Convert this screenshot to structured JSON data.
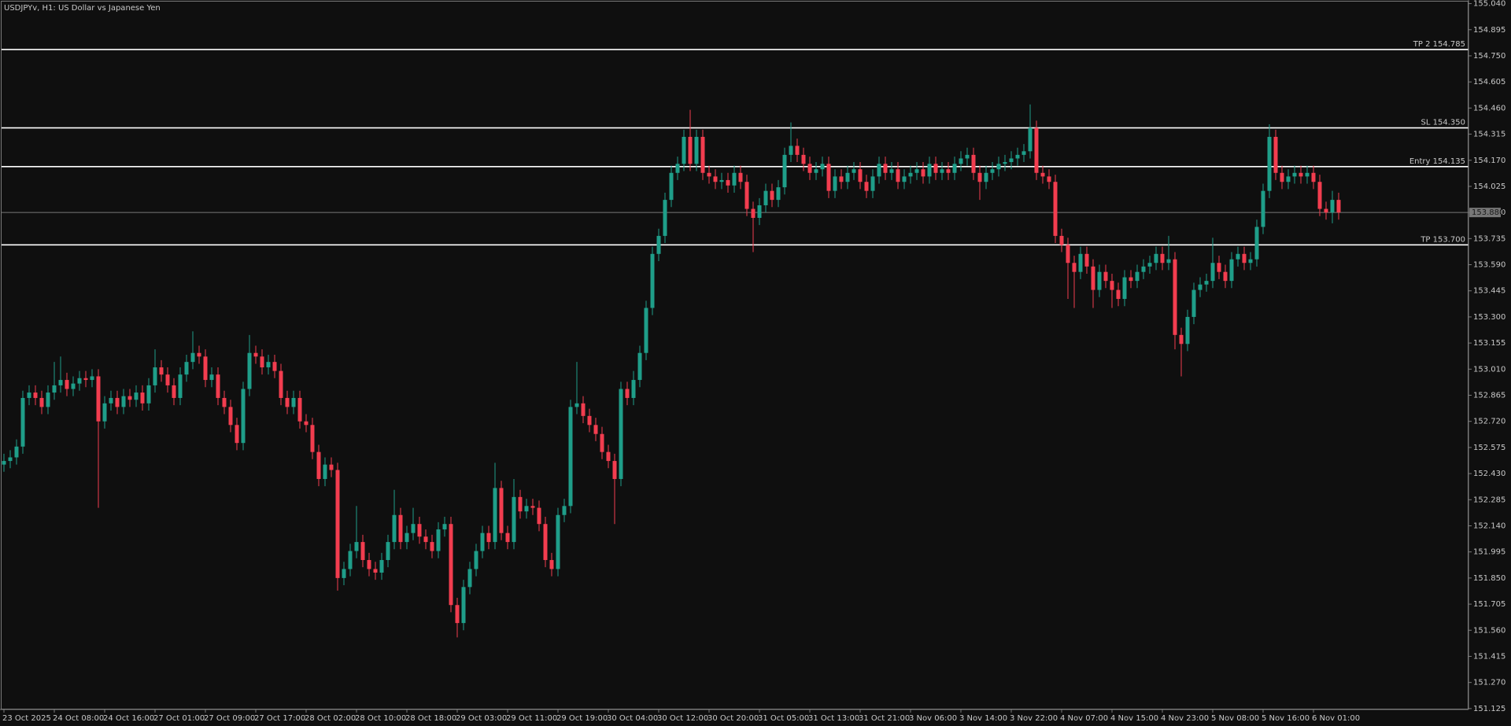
{
  "chart_data": {
    "type": "candlestick",
    "title": "USDJPYv, H1:  US Dollar vs Japanese Yen",
    "up_color": "#1f9e89",
    "down_color": "#f23d4f",
    "ylim": [
      151.12,
      155.06
    ],
    "yticks": [
      {
        "value": 151.125,
        "label": "151.125"
      },
      {
        "value": 151.27,
        "label": "151.270"
      },
      {
        "value": 151.415,
        "label": "151.415"
      },
      {
        "value": 151.56,
        "label": "151.560"
      },
      {
        "value": 151.705,
        "label": "151.705"
      },
      {
        "value": 151.85,
        "label": "151.850"
      },
      {
        "value": 151.995,
        "label": "151.995"
      },
      {
        "value": 152.14,
        "label": "152.140"
      },
      {
        "value": 152.285,
        "label": "152.285"
      },
      {
        "value": 152.43,
        "label": "152.430"
      },
      {
        "value": 152.575,
        "label": "152.575"
      },
      {
        "value": 152.72,
        "label": "152.720"
      },
      {
        "value": 152.865,
        "label": "152.865"
      },
      {
        "value": 153.01,
        "label": "153.010"
      },
      {
        "value": 153.155,
        "label": "153.155"
      },
      {
        "value": 153.3,
        "label": "153.300"
      },
      {
        "value": 153.445,
        "label": "153.445"
      },
      {
        "value": 153.59,
        "label": "153.590"
      },
      {
        "value": 153.735,
        "label": "153.735"
      },
      {
        "value": 153.88,
        "label": "153.880"
      },
      {
        "value": 154.025,
        "label": "154.025"
      },
      {
        "value": 154.17,
        "label": "154.170"
      },
      {
        "value": 154.315,
        "label": "154.315"
      },
      {
        "value": 154.46,
        "label": "154.460"
      },
      {
        "value": 154.605,
        "label": "154.605"
      },
      {
        "value": 154.75,
        "label": "154.750"
      },
      {
        "value": 154.895,
        "label": "154.895"
      },
      {
        "value": 155.04,
        "label": "155.040"
      }
    ],
    "levels": [
      {
        "value": 154.785,
        "label": "TP 2 154.785"
      },
      {
        "value": 154.35,
        "label": "SL 154.350"
      },
      {
        "value": 154.135,
        "label": "Entry 154.135"
      },
      {
        "value": 153.7,
        "label": "TP 153.700"
      }
    ],
    "bid": {
      "value": 153.88,
      "label": "153.880"
    },
    "categories": [
      "23 Oct 2025",
      null,
      null,
      null,
      null,
      null,
      null,
      null,
      "24 Oct 08:00",
      null,
      null,
      null,
      null,
      null,
      null,
      null,
      "24 Oct 16:00",
      null,
      null,
      null,
      null,
      null,
      null,
      null,
      "27 Oct 01:00",
      null,
      null,
      null,
      null,
      null,
      null,
      null,
      "27 Oct 09:00",
      null,
      null,
      null,
      null,
      null,
      null,
      null,
      "27 Oct 17:00",
      null,
      null,
      null,
      null,
      null,
      null,
      null,
      "28 Oct 02:00",
      null,
      null,
      null,
      null,
      null,
      null,
      null,
      "28 Oct 10:00",
      null,
      null,
      null,
      null,
      null,
      null,
      null,
      "28 Oct 18:00",
      null,
      null,
      null,
      null,
      null,
      null,
      null,
      "29 Oct 03:00",
      null,
      null,
      null,
      null,
      null,
      null,
      null,
      "29 Oct 11:00",
      null,
      null,
      null,
      null,
      null,
      null,
      null,
      "29 Oct 19:00",
      null,
      null,
      null,
      null,
      null,
      null,
      null,
      "30 Oct 04:00",
      null,
      null,
      null,
      null,
      null,
      null,
      null,
      "30 Oct 12:00",
      null,
      null,
      null,
      null,
      null,
      null,
      null,
      "30 Oct 20:00",
      null,
      null,
      null,
      null,
      null,
      null,
      null,
      "31 Oct 05:00",
      null,
      null,
      null,
      null,
      null,
      null,
      null,
      "31 Oct 13:00",
      null,
      null,
      null,
      null,
      null,
      null,
      null,
      "31 Oct 21:00",
      null,
      null,
      null,
      null,
      null,
      null,
      null,
      "3 Nov 06:00",
      null,
      null,
      null,
      null,
      null,
      null,
      null,
      "3 Nov 14:00",
      null,
      null,
      null,
      null,
      null,
      null,
      null,
      "3 Nov 22:00",
      null,
      null,
      null,
      null,
      null,
      null,
      null,
      "4 Nov 07:00",
      null,
      null,
      null,
      null,
      null,
      null,
      null,
      "4 Nov 15:00",
      null,
      null,
      null,
      null,
      null,
      null,
      null,
      "4 Nov 23:00",
      null,
      null,
      null,
      null,
      null,
      null,
      null,
      "5 Nov 08:00",
      null,
      null,
      null,
      null,
      null,
      null,
      null,
      "5 Nov 16:00",
      null,
      null,
      null,
      null,
      null,
      null,
      null,
      "6 Nov 01:00",
      null,
      null,
      null,
      null
    ],
    "open": [
      152.48,
      152.5,
      152.52,
      152.58,
      152.85,
      152.88,
      152.85,
      152.8,
      152.88,
      152.92,
      152.95,
      152.9,
      152.93,
      152.96,
      152.95,
      152.97,
      152.72,
      152.82,
      152.85,
      152.8,
      152.86,
      152.84,
      152.88,
      152.82,
      152.92,
      153.02,
      152.98,
      152.92,
      152.85,
      152.98,
      153.05,
      153.1,
      153.08,
      152.95,
      152.98,
      152.85,
      152.8,
      152.7,
      152.6,
      152.9,
      153.1,
      153.08,
      153.02,
      153.05,
      153.0,
      152.85,
      152.8,
      152.85,
      152.72,
      152.7,
      152.55,
      152.4,
      152.48,
      152.45,
      151.85,
      151.9,
      152.0,
      152.05,
      151.95,
      151.9,
      151.88,
      151.95,
      152.05,
      152.2,
      152.05,
      152.1,
      152.15,
      152.08,
      152.05,
      152.0,
      152.12,
      152.15,
      151.7,
      151.6,
      151.8,
      151.9,
      152.0,
      152.1,
      152.05,
      152.35,
      152.1,
      152.05,
      152.3,
      152.22,
      152.25,
      152.24,
      152.15,
      151.95,
      151.9,
      152.2,
      152.25,
      152.8,
      152.82,
      152.75,
      152.7,
      152.65,
      152.55,
      152.5,
      152.4,
      152.9,
      152.85,
      152.95,
      153.1,
      153.35,
      153.65,
      153.75,
      153.95,
      154.1,
      154.15,
      154.3,
      154.15,
      154.3,
      154.1,
      154.08,
      154.05,
      154.06,
      154.03,
      154.1,
      154.05,
      153.9,
      153.85,
      153.92,
      154.0,
      153.95,
      154.02,
      154.2,
      154.25,
      154.2,
      154.15,
      154.1,
      154.12,
      154.15,
      154.0,
      154.08,
      154.05,
      154.1,
      154.12,
      154.05,
      154.0,
      154.08,
      154.15,
      154.1,
      154.12,
      154.05,
      154.08,
      154.1,
      154.12,
      154.08,
      154.15,
      154.1,
      154.12,
      154.1,
      154.15,
      154.18,
      154.2,
      154.1,
      154.05,
      154.1,
      154.12,
      154.15,
      154.16,
      154.18,
      154.2,
      154.22,
      154.35,
      154.1,
      154.08,
      154.05,
      153.75,
      153.7,
      153.6,
      153.55,
      153.65,
      153.58,
      153.45,
      153.55,
      153.5,
      153.45,
      153.4,
      153.52,
      153.5,
      153.55,
      153.58,
      153.6,
      153.65,
      153.6,
      153.62,
      153.2,
      153.15,
      153.3,
      153.45,
      153.48,
      153.5,
      153.6,
      153.55,
      153.5,
      153.62,
      153.65,
      153.6,
      153.62,
      153.8,
      154.0,
      154.3,
      154.1,
      154.05,
      154.08,
      154.1,
      154.08,
      154.1,
      154.05,
      153.9,
      153.88,
      153.95
    ],
    "high": [
      152.54,
      152.56,
      152.62,
      152.89,
      152.92,
      152.92,
      152.89,
      152.92,
      153.05,
      153.08,
      152.99,
      152.97,
      153.0,
      153.0,
      153.01,
      153.01,
      152.86,
      152.89,
      152.89,
      152.9,
      152.9,
      152.92,
      152.92,
      152.96,
      153.12,
      153.06,
      153.02,
      152.96,
      153.02,
      153.09,
      153.22,
      153.14,
      153.12,
      153.02,
      153.02,
      152.89,
      152.84,
      152.74,
      152.94,
      153.2,
      153.14,
      153.12,
      153.09,
      153.09,
      153.04,
      152.89,
      152.89,
      152.89,
      152.76,
      152.74,
      152.59,
      152.52,
      152.52,
      152.49,
      151.94,
      152.04,
      152.25,
      152.09,
      151.99,
      151.94,
      151.99,
      152.09,
      152.34,
      152.24,
      152.14,
      152.24,
      152.19,
      152.12,
      152.09,
      152.16,
      152.19,
      152.19,
      151.74,
      151.84,
      151.94,
      152.04,
      152.14,
      152.14,
      152.49,
      152.39,
      152.14,
      152.4,
      152.34,
      152.29,
      152.29,
      152.28,
      152.19,
      151.99,
      152.24,
      152.29,
      152.84,
      153.05,
      152.86,
      152.79,
      152.74,
      152.69,
      152.59,
      152.54,
      152.94,
      152.94,
      153.0,
      153.14,
      153.39,
      153.69,
      153.79,
      153.99,
      154.14,
      154.19,
      154.34,
      154.45,
      154.34,
      154.34,
      154.14,
      154.12,
      154.1,
      154.1,
      154.14,
      154.14,
      154.09,
      153.94,
      153.96,
      154.04,
      154.04,
      154.06,
      154.24,
      154.38,
      154.29,
      154.24,
      154.19,
      154.16,
      154.19,
      154.19,
      154.12,
      154.12,
      154.14,
      154.16,
      154.16,
      154.09,
      154.12,
      154.19,
      154.19,
      154.16,
      154.16,
      154.12,
      154.14,
      154.16,
      154.16,
      154.19,
      154.19,
      154.16,
      154.16,
      154.19,
      154.22,
      154.24,
      154.24,
      154.14,
      154.14,
      154.16,
      154.19,
      154.2,
      154.22,
      154.24,
      154.26,
      154.48,
      154.39,
      154.14,
      154.12,
      154.09,
      153.79,
      153.74,
      153.64,
      153.69,
      153.69,
      153.62,
      153.59,
      153.59,
      153.54,
      153.49,
      153.56,
      153.56,
      153.59,
      153.62,
      153.64,
      153.69,
      153.69,
      153.75,
      153.66,
      153.24,
      153.34,
      153.49,
      153.52,
      153.54,
      153.74,
      153.64,
      153.59,
      153.66,
      153.69,
      153.69,
      153.66,
      153.84,
      154.04,
      154.37,
      154.34,
      154.14,
      154.12,
      154.14,
      154.14,
      154.14,
      154.14,
      154.09,
      153.94,
      154.0,
      153.99
    ],
    "low": [
      152.44,
      152.46,
      152.48,
      152.54,
      152.81,
      152.81,
      152.76,
      152.76,
      152.84,
      152.88,
      152.86,
      152.86,
      152.89,
      152.91,
      152.91,
      152.24,
      152.68,
      152.78,
      152.76,
      152.76,
      152.8,
      152.8,
      152.78,
      152.78,
      152.88,
      152.94,
      152.88,
      152.81,
      152.81,
      152.94,
      153.01,
      153.04,
      152.91,
      152.91,
      152.81,
      152.76,
      152.66,
      152.56,
      152.56,
      152.86,
      153.04,
      152.98,
      152.98,
      152.96,
      152.81,
      152.76,
      152.76,
      152.68,
      152.66,
      152.51,
      152.36,
      152.36,
      152.41,
      151.78,
      151.81,
      151.86,
      151.96,
      151.91,
      151.86,
      151.84,
      151.84,
      151.91,
      152.01,
      152.01,
      152.01,
      152.06,
      152.04,
      152.01,
      151.96,
      151.96,
      152.08,
      151.66,
      151.52,
      151.56,
      151.76,
      151.86,
      151.96,
      152.01,
      152.01,
      152.06,
      152.01,
      152.01,
      152.18,
      152.18,
      152.2,
      152.11,
      151.91,
      151.86,
      151.86,
      152.16,
      152.21,
      152.76,
      152.71,
      152.66,
      152.61,
      152.51,
      152.46,
      152.15,
      152.36,
      152.81,
      152.81,
      152.91,
      153.06,
      153.31,
      153.61,
      153.71,
      153.91,
      154.06,
      154.11,
      154.11,
      154.11,
      154.06,
      154.04,
      154.01,
      154.01,
      153.99,
      153.99,
      154.01,
      153.86,
      153.66,
      153.81,
      153.88,
      153.91,
      153.91,
      153.98,
      154.16,
      154.16,
      154.11,
      154.06,
      154.06,
      154.08,
      153.96,
      153.96,
      154.01,
      154.01,
      154.06,
      154.01,
      153.96,
      153.96,
      154.04,
      154.06,
      154.06,
      154.01,
      154.01,
      154.04,
      154.06,
      154.04,
      154.04,
      154.06,
      154.06,
      154.06,
      154.06,
      154.11,
      154.14,
      154.06,
      153.95,
      154.01,
      154.06,
      154.08,
      154.11,
      154.12,
      154.14,
      154.16,
      154.18,
      154.06,
      154.04,
      154.01,
      153.71,
      153.66,
      153.4,
      153.35,
      153.51,
      153.54,
      153.35,
      153.41,
      153.46,
      153.35,
      153.36,
      153.36,
      153.46,
      153.46,
      153.51,
      153.54,
      153.56,
      153.56,
      153.56,
      153.12,
      152.97,
      153.11,
      153.26,
      153.41,
      153.44,
      153.46,
      153.51,
      153.46,
      153.46,
      153.58,
      153.56,
      153.56,
      153.58,
      153.76,
      153.96,
      154.06,
      154.01,
      154.01,
      154.04,
      154.04,
      154.04,
      154.01,
      153.86,
      153.84,
      153.82,
      153.84
    ],
    "close": [
      152.5,
      152.52,
      152.58,
      152.85,
      152.88,
      152.85,
      152.8,
      152.88,
      152.92,
      152.95,
      152.9,
      152.93,
      152.96,
      152.95,
      152.97,
      152.72,
      152.82,
      152.85,
      152.8,
      152.86,
      152.84,
      152.88,
      152.82,
      152.92,
      153.02,
      152.98,
      152.92,
      152.85,
      152.98,
      153.05,
      153.1,
      153.08,
      152.95,
      152.98,
      152.85,
      152.8,
      152.7,
      152.6,
      152.9,
      153.1,
      153.08,
      153.02,
      153.05,
      153.0,
      152.85,
      152.8,
      152.85,
      152.72,
      152.7,
      152.55,
      152.4,
      152.48,
      152.45,
      151.85,
      151.9,
      152.0,
      152.05,
      151.95,
      151.9,
      151.88,
      151.95,
      152.05,
      152.2,
      152.05,
      152.1,
      152.15,
      152.08,
      152.05,
      152.0,
      152.12,
      152.15,
      151.7,
      151.6,
      151.8,
      151.9,
      152.0,
      152.1,
      152.05,
      152.35,
      152.1,
      152.05,
      152.3,
      152.22,
      152.25,
      152.24,
      152.15,
      151.95,
      151.9,
      152.2,
      152.25,
      152.8,
      152.82,
      152.75,
      152.7,
      152.65,
      152.55,
      152.5,
      152.4,
      152.9,
      152.85,
      152.95,
      153.1,
      153.35,
      153.65,
      153.75,
      153.95,
      154.1,
      154.15,
      154.3,
      154.15,
      154.3,
      154.1,
      154.08,
      154.05,
      154.06,
      154.03,
      154.1,
      154.05,
      153.9,
      153.85,
      153.92,
      154.0,
      153.95,
      154.02,
      154.2,
      154.25,
      154.2,
      154.15,
      154.1,
      154.12,
      154.15,
      154.0,
      154.08,
      154.05,
      154.1,
      154.12,
      154.05,
      154.0,
      154.08,
      154.15,
      154.1,
      154.12,
      154.05,
      154.08,
      154.1,
      154.12,
      154.08,
      154.15,
      154.1,
      154.12,
      154.1,
      154.15,
      154.18,
      154.2,
      154.1,
      154.05,
      154.1,
      154.12,
      154.15,
      154.16,
      154.18,
      154.2,
      154.22,
      154.35,
      154.1,
      154.08,
      154.05,
      153.75,
      153.7,
      153.6,
      153.55,
      153.65,
      153.58,
      153.45,
      153.55,
      153.5,
      153.45,
      153.4,
      153.52,
      153.5,
      153.55,
      153.58,
      153.6,
      153.65,
      153.6,
      153.62,
      153.2,
      153.15,
      153.3,
      153.45,
      153.48,
      153.5,
      153.6,
      153.55,
      153.5,
      153.62,
      153.65,
      153.6,
      153.62,
      153.8,
      154.0,
      154.3,
      154.1,
      154.05,
      154.08,
      154.1,
      154.08,
      154.1,
      154.05,
      153.9,
      153.88,
      153.95,
      153.88
    ]
  }
}
